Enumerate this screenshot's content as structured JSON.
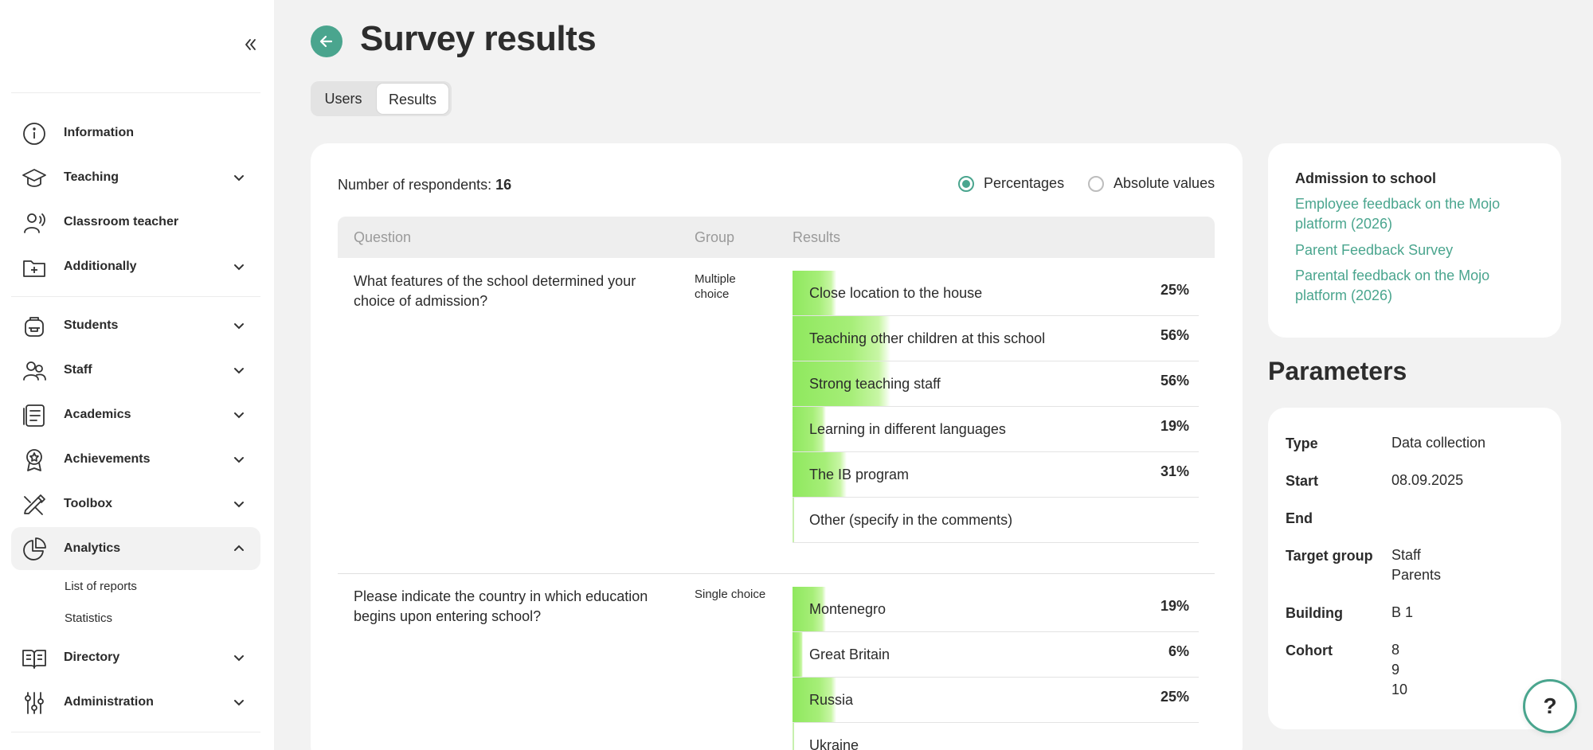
{
  "page": {
    "title": "Survey results"
  },
  "tabs": {
    "users": "Users",
    "results": "Results"
  },
  "sidebar": {
    "items": [
      {
        "label": "Information",
        "icon": "info-icon",
        "expandable": false
      },
      {
        "label": "Teaching",
        "icon": "graduation-cap-icon",
        "expandable": true
      },
      {
        "label": "Classroom teacher",
        "icon": "teacher-icon",
        "expandable": false
      },
      {
        "label": "Additionally",
        "icon": "folder-plus-icon",
        "expandable": true
      },
      {
        "label": "Students",
        "icon": "backpack-icon",
        "expandable": true
      },
      {
        "label": "Staff",
        "icon": "users-icon",
        "expandable": true
      },
      {
        "label": "Academics",
        "icon": "document-list-icon",
        "expandable": true
      },
      {
        "label": "Achievements",
        "icon": "award-icon",
        "expandable": true
      },
      {
        "label": "Toolbox",
        "icon": "tools-icon",
        "expandable": true
      },
      {
        "label": "Analytics",
        "icon": "pie-chart-icon",
        "expandable": true,
        "expanded": true
      },
      {
        "label": "Directory",
        "icon": "book-open-icon",
        "expandable": true
      },
      {
        "label": "Administration",
        "icon": "sliders-icon",
        "expandable": true
      }
    ],
    "analytics_sub": [
      "List of reports",
      "Statistics"
    ]
  },
  "summary": {
    "respondents_label": "Number of respondents:",
    "respondents_count": "16"
  },
  "view_mode": {
    "percentages": "Percentages",
    "absolute": "Absolute values",
    "selected": "percentages"
  },
  "table": {
    "headers": {
      "question": "Question",
      "group": "Group",
      "results": "Results"
    },
    "questions": [
      {
        "text": "What features of the school determined your choice of admission?",
        "group": "Multiple choice",
        "answers": [
          {
            "label": "Close location to the house",
            "pct": "25%",
            "value": 25
          },
          {
            "label": "Teaching other children at this school",
            "pct": "56%",
            "value": 56
          },
          {
            "label": "Strong teaching staff",
            "pct": "56%",
            "value": 56
          },
          {
            "label": "Learning in different languages",
            "pct": "19%",
            "value": 19
          },
          {
            "label": "The IB program",
            "pct": "31%",
            "value": 31
          },
          {
            "label": "Other (specify in the comments)",
            "pct": "",
            "value": 0
          }
        ]
      },
      {
        "text": "Please indicate the country in which education begins upon entering school?",
        "group": "Single choice",
        "answers": [
          {
            "label": "Montenegro",
            "pct": "19%",
            "value": 19
          },
          {
            "label": "Great Britain",
            "pct": "6%",
            "value": 6
          },
          {
            "label": "Russia",
            "pct": "25%",
            "value": 25
          },
          {
            "label": "Ukraine",
            "pct": "",
            "value": 0
          }
        ]
      }
    ]
  },
  "related": {
    "title": "Admission to school",
    "links": [
      "Employee feedback on the Mojo platform (2026)",
      "Parent Feedback Survey",
      "Parental feedback on the Mojo platform (2026)"
    ]
  },
  "parameters": {
    "title": "Parameters",
    "type_label": "Type",
    "type_value": "Data collection",
    "start_label": "Start",
    "start_value": "08.09.2025",
    "end_label": "End",
    "end_value": "",
    "target_label": "Target group",
    "target_values": [
      "Staff",
      "Parents"
    ],
    "building_label": "Building",
    "building_value": "B 1",
    "cohort_label": "Cohort",
    "cohort_values": [
      "8",
      "9",
      "10"
    ]
  },
  "help": {
    "label": "?"
  },
  "colors": {
    "accent": "#4aa58e",
    "bar": "#8fe85e",
    "background": "#f2f2f2"
  }
}
